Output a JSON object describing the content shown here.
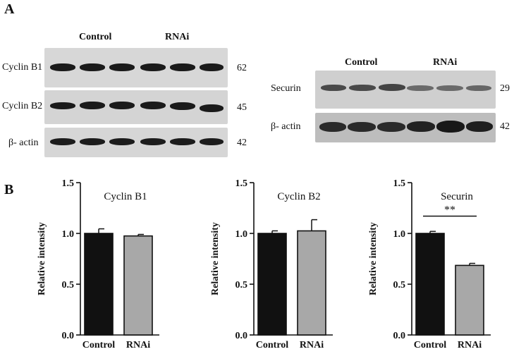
{
  "panel_a": {
    "label": "A",
    "left_blot": {
      "headers": [
        "Control",
        "RNAi"
      ],
      "rows": [
        {
          "protein": "Cyclin B1",
          "mw": "62"
        },
        {
          "protein": "Cyclin B2",
          "mw": "45"
        },
        {
          "protein": "β- actin",
          "mw": "42"
        }
      ]
    },
    "right_blot": {
      "headers": [
        "Control",
        "RNAi"
      ],
      "rows": [
        {
          "protein": "Securin",
          "mw": "29"
        },
        {
          "protein": "β- actin",
          "mw": "42"
        }
      ]
    }
  },
  "panel_b": {
    "label": "B"
  },
  "chart_data": [
    {
      "type": "bar",
      "title": "Cyclin B1",
      "ylabel": "Relative intensity",
      "categories": [
        "Control",
        "RNAi"
      ],
      "values": [
        1.0,
        0.975
      ],
      "error": [
        0.045,
        0.015
      ],
      "ylim": [
        0,
        1.5
      ],
      "yticks": [
        "0.0",
        "0.5",
        "1.0",
        "1.5"
      ],
      "bar_colors": [
        "#111111",
        "#a8a8a8"
      ],
      "significance": ""
    },
    {
      "type": "bar",
      "title": "Cyclin B2",
      "ylabel": "Relative intensity",
      "categories": [
        "Control",
        "RNAi"
      ],
      "values": [
        1.0,
        1.025
      ],
      "error": [
        0.025,
        0.11
      ],
      "ylim": [
        0,
        1.5
      ],
      "yticks": [
        "0.0",
        "0.5",
        "1.0",
        "1.5"
      ],
      "bar_colors": [
        "#111111",
        "#a8a8a8"
      ],
      "significance": ""
    },
    {
      "type": "bar",
      "title": "Securin",
      "ylabel": "Relative intensity",
      "categories": [
        "Control",
        "RNAi"
      ],
      "values": [
        1.0,
        0.685
      ],
      "error": [
        0.02,
        0.02
      ],
      "ylim": [
        0,
        1.5
      ],
      "yticks": [
        "0.0",
        "0.5",
        "1.0",
        "1.5"
      ],
      "bar_colors": [
        "#111111",
        "#a8a8a8"
      ],
      "significance": "**"
    }
  ]
}
